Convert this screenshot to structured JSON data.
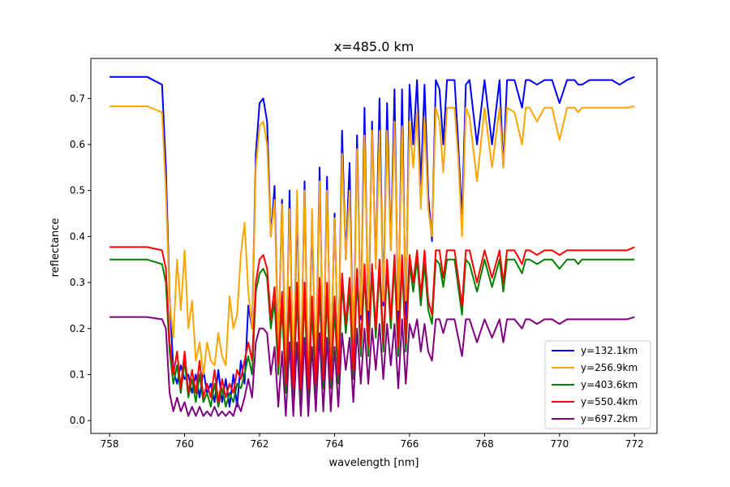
{
  "chart_data": {
    "type": "line",
    "title": "x=485.0 km",
    "xlabel": "wavelength [nm]",
    "ylabel": "reflectance",
    "xlim": [
      757.5,
      772.6
    ],
    "ylim": [
      -0.028,
      0.787
    ],
    "xticks": [
      758,
      760,
      762,
      764,
      766,
      768,
      770,
      772
    ],
    "yticks": [
      0.0,
      0.1,
      0.2,
      0.3,
      0.4,
      0.5,
      0.6,
      0.7
    ],
    "xtick_labels": [
      "758",
      "760",
      "762",
      "764",
      "766",
      "768",
      "770",
      "772"
    ],
    "ytick_labels": [
      "0.0",
      "0.1",
      "0.2",
      "0.3",
      "0.4",
      "0.5",
      "0.6",
      "0.7"
    ],
    "grid": false,
    "legend_position": "lower-right",
    "x": [
      758.0,
      759.0,
      759.4,
      759.5,
      759.6,
      759.7,
      759.8,
      759.9,
      760.0,
      760.1,
      760.2,
      760.3,
      760.4,
      760.5,
      760.6,
      760.7,
      760.8,
      760.9,
      761.0,
      761.1,
      761.2,
      761.3,
      761.4,
      761.5,
      761.6,
      761.7,
      761.8,
      761.9,
      762.0,
      762.1,
      762.2,
      762.3,
      762.4,
      762.5,
      762.6,
      762.7,
      762.8,
      762.9,
      763.0,
      763.1,
      763.2,
      763.3,
      763.4,
      763.5,
      763.6,
      763.7,
      763.8,
      763.9,
      764.0,
      764.1,
      764.2,
      764.3,
      764.4,
      764.5,
      764.6,
      764.7,
      764.8,
      764.9,
      765.0,
      765.1,
      765.2,
      765.3,
      765.4,
      765.5,
      765.6,
      765.7,
      765.8,
      765.9,
      766.0,
      766.1,
      766.2,
      766.3,
      766.4,
      766.5,
      766.6,
      766.7,
      766.8,
      766.9,
      767.0,
      767.2,
      767.3,
      767.4,
      767.5,
      767.6,
      767.8,
      768.0,
      768.2,
      768.4,
      768.5,
      768.6,
      768.8,
      769.0,
      769.1,
      769.2,
      769.4,
      769.6,
      769.8,
      770.0,
      770.2,
      770.4,
      770.5,
      770.6,
      770.8,
      771.0,
      771.2,
      771.4,
      771.6,
      771.8,
      772.0
    ],
    "series": [
      {
        "name": "y=132.1km",
        "color": "#0000ff",
        "values": [
          0.747,
          0.747,
          0.73,
          0.55,
          0.27,
          0.11,
          0.08,
          0.12,
          0.09,
          0.1,
          0.06,
          0.1,
          0.05,
          0.11,
          0.06,
          0.08,
          0.04,
          0.11,
          0.04,
          0.09,
          0.03,
          0.1,
          0.03,
          0.13,
          0.08,
          0.25,
          0.2,
          0.58,
          0.69,
          0.7,
          0.65,
          0.4,
          0.51,
          0.15,
          0.48,
          0.08,
          0.5,
          0.07,
          0.47,
          0.08,
          0.52,
          0.06,
          0.44,
          0.09,
          0.55,
          0.1,
          0.53,
          0.1,
          0.45,
          0.12,
          0.63,
          0.35,
          0.56,
          0.13,
          0.62,
          0.22,
          0.68,
          0.2,
          0.65,
          0.33,
          0.7,
          0.25,
          0.69,
          0.37,
          0.72,
          0.2,
          0.72,
          0.22,
          0.73,
          0.6,
          0.74,
          0.51,
          0.73,
          0.49,
          0.39,
          0.74,
          0.72,
          0.6,
          0.74,
          0.74,
          0.6,
          0.44,
          0.73,
          0.74,
          0.6,
          0.74,
          0.6,
          0.74,
          0.55,
          0.74,
          0.74,
          0.68,
          0.74,
          0.74,
          0.73,
          0.74,
          0.74,
          0.69,
          0.74,
          0.74,
          0.73,
          0.73,
          0.74,
          0.74,
          0.74,
          0.74,
          0.73,
          0.74,
          0.747
        ]
      },
      {
        "name": "y=256.9km",
        "color": "#ffa500",
        "values": [
          0.683,
          0.683,
          0.67,
          0.5,
          0.26,
          0.18,
          0.35,
          0.24,
          0.37,
          0.2,
          0.26,
          0.13,
          0.17,
          0.1,
          0.17,
          0.13,
          0.12,
          0.19,
          0.14,
          0.12,
          0.27,
          0.2,
          0.23,
          0.36,
          0.43,
          0.28,
          0.2,
          0.55,
          0.64,
          0.65,
          0.6,
          0.4,
          0.48,
          0.15,
          0.47,
          0.12,
          0.46,
          0.1,
          0.5,
          0.09,
          0.5,
          0.08,
          0.46,
          0.09,
          0.52,
          0.12,
          0.5,
          0.12,
          0.44,
          0.14,
          0.58,
          0.35,
          0.5,
          0.14,
          0.59,
          0.23,
          0.62,
          0.24,
          0.63,
          0.33,
          0.63,
          0.26,
          0.63,
          0.37,
          0.65,
          0.24,
          0.64,
          0.26,
          0.65,
          0.55,
          0.67,
          0.46,
          0.66,
          0.46,
          0.4,
          0.68,
          0.65,
          0.54,
          0.68,
          0.68,
          0.57,
          0.4,
          0.68,
          0.66,
          0.52,
          0.68,
          0.55,
          0.68,
          0.55,
          0.68,
          0.67,
          0.6,
          0.68,
          0.68,
          0.65,
          0.68,
          0.68,
          0.61,
          0.68,
          0.68,
          0.67,
          0.68,
          0.68,
          0.68,
          0.68,
          0.68,
          0.68,
          0.68,
          0.683
        ]
      },
      {
        "name": "y=403.6km",
        "color": "#008000",
        "values": [
          0.35,
          0.35,
          0.34,
          0.3,
          0.15,
          0.08,
          0.12,
          0.06,
          0.13,
          0.05,
          0.09,
          0.04,
          0.1,
          0.04,
          0.06,
          0.03,
          0.08,
          0.03,
          0.07,
          0.03,
          0.06,
          0.04,
          0.08,
          0.07,
          0.1,
          0.14,
          0.1,
          0.28,
          0.32,
          0.33,
          0.31,
          0.2,
          0.26,
          0.1,
          0.25,
          0.06,
          0.26,
          0.05,
          0.27,
          0.05,
          0.27,
          0.05,
          0.24,
          0.06,
          0.28,
          0.07,
          0.27,
          0.07,
          0.24,
          0.08,
          0.3,
          0.19,
          0.28,
          0.09,
          0.31,
          0.14,
          0.32,
          0.14,
          0.32,
          0.18,
          0.33,
          0.15,
          0.33,
          0.2,
          0.34,
          0.14,
          0.34,
          0.15,
          0.34,
          0.28,
          0.35,
          0.25,
          0.34,
          0.24,
          0.21,
          0.35,
          0.34,
          0.29,
          0.35,
          0.35,
          0.29,
          0.23,
          0.35,
          0.34,
          0.28,
          0.35,
          0.29,
          0.35,
          0.28,
          0.35,
          0.35,
          0.32,
          0.35,
          0.35,
          0.34,
          0.35,
          0.35,
          0.33,
          0.35,
          0.35,
          0.34,
          0.35,
          0.35,
          0.35,
          0.35,
          0.35,
          0.35,
          0.35,
          0.35
        ]
      },
      {
        "name": "y=550.4km",
        "color": "#ff0000",
        "values": [
          0.377,
          0.377,
          0.37,
          0.33,
          0.17,
          0.1,
          0.15,
          0.07,
          0.15,
          0.06,
          0.11,
          0.06,
          0.13,
          0.05,
          0.08,
          0.05,
          0.11,
          0.04,
          0.09,
          0.05,
          0.08,
          0.06,
          0.11,
          0.09,
          0.13,
          0.17,
          0.13,
          0.3,
          0.35,
          0.36,
          0.33,
          0.22,
          0.29,
          0.12,
          0.28,
          0.08,
          0.29,
          0.07,
          0.3,
          0.07,
          0.3,
          0.07,
          0.27,
          0.08,
          0.31,
          0.09,
          0.3,
          0.09,
          0.27,
          0.1,
          0.32,
          0.21,
          0.31,
          0.11,
          0.33,
          0.16,
          0.34,
          0.16,
          0.34,
          0.2,
          0.35,
          0.17,
          0.35,
          0.22,
          0.36,
          0.16,
          0.36,
          0.17,
          0.36,
          0.3,
          0.37,
          0.27,
          0.37,
          0.26,
          0.23,
          0.37,
          0.37,
          0.31,
          0.37,
          0.37,
          0.31,
          0.25,
          0.37,
          0.37,
          0.3,
          0.37,
          0.31,
          0.37,
          0.3,
          0.37,
          0.37,
          0.34,
          0.37,
          0.37,
          0.36,
          0.37,
          0.37,
          0.36,
          0.37,
          0.37,
          0.37,
          0.37,
          0.37,
          0.37,
          0.37,
          0.37,
          0.37,
          0.37,
          0.377
        ]
      },
      {
        "name": "y=697.2km",
        "color": "#800080",
        "values": [
          0.225,
          0.225,
          0.22,
          0.2,
          0.06,
          0.02,
          0.05,
          0.02,
          0.04,
          0.01,
          0.03,
          0.01,
          0.03,
          0.01,
          0.02,
          0.01,
          0.03,
          0.01,
          0.02,
          0.01,
          0.02,
          0.01,
          0.04,
          0.02,
          0.05,
          0.09,
          0.05,
          0.17,
          0.2,
          0.2,
          0.19,
          0.1,
          0.16,
          0.03,
          0.15,
          0.01,
          0.17,
          0.01,
          0.17,
          0.01,
          0.18,
          0.01,
          0.16,
          0.02,
          0.19,
          0.02,
          0.18,
          0.02,
          0.16,
          0.03,
          0.19,
          0.11,
          0.18,
          0.04,
          0.2,
          0.08,
          0.2,
          0.08,
          0.2,
          0.11,
          0.21,
          0.09,
          0.21,
          0.12,
          0.21,
          0.07,
          0.22,
          0.08,
          0.21,
          0.18,
          0.22,
          0.15,
          0.21,
          0.15,
          0.13,
          0.22,
          0.22,
          0.19,
          0.22,
          0.22,
          0.18,
          0.14,
          0.22,
          0.22,
          0.17,
          0.22,
          0.18,
          0.22,
          0.17,
          0.22,
          0.22,
          0.2,
          0.22,
          0.22,
          0.21,
          0.22,
          0.22,
          0.21,
          0.22,
          0.22,
          0.22,
          0.22,
          0.22,
          0.22,
          0.22,
          0.22,
          0.22,
          0.22,
          0.225
        ]
      }
    ]
  }
}
